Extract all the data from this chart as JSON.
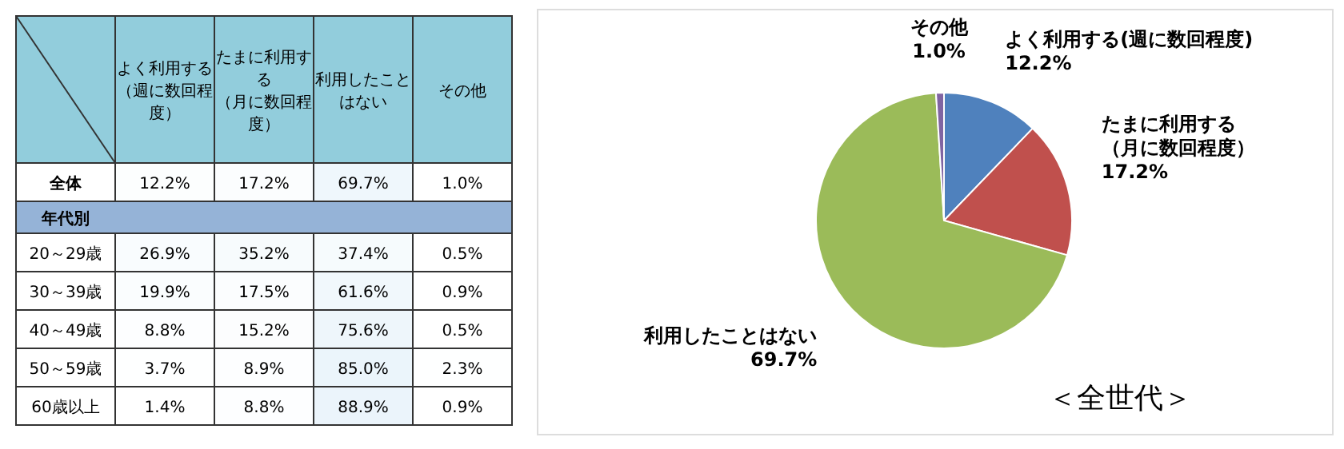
{
  "chart_data": [
    {
      "type": "heatmap",
      "categories": [
        "よく利用する（週に数回程度）",
        "たまに利用する（月に数回程度）",
        "利用したことはない",
        "その他"
      ],
      "y_categories": [
        "全体",
        "年代別",
        "20～29歳",
        "30～39歳",
        "40～49歳",
        "50～59歳",
        "60歳以上"
      ],
      "cells": [
        [
          12.2,
          17.2,
          69.7,
          1.0
        ],
        [
          null,
          null,
          null,
          null
        ],
        [
          26.9,
          35.2,
          37.4,
          0.5
        ],
        [
          19.9,
          17.5,
          61.6,
          0.9
        ],
        [
          8.8,
          15.2,
          75.6,
          0.5
        ],
        [
          3.7,
          8.9,
          85.0,
          2.3
        ],
        [
          1.4,
          8.8,
          88.9,
          0.9
        ]
      ],
      "cell_labels": [
        [
          "12.2%",
          "17.2%",
          "69.7%",
          "1.0%"
        ],
        [
          null,
          null,
          null,
          null
        ],
        [
          "26.9%",
          "35.2%",
          "37.4%",
          "0.5%"
        ],
        [
          "19.9%",
          "17.5%",
          "61.6%",
          "0.9%"
        ],
        [
          "8.8%",
          "15.2%",
          "75.6%",
          "0.5%"
        ],
        [
          "3.7%",
          "8.9%",
          "85.0%",
          "2.3%"
        ],
        [
          "1.4%",
          "8.8%",
          "88.9%",
          "0.9%"
        ]
      ]
    },
    {
      "type": "pie",
      "title": "＜全世代＞",
      "categories": [
        "よく利用する(週に数回程度)",
        "たまに利用する（月に数回程度）",
        "利用したことはない",
        "その他"
      ],
      "values": [
        12.2,
        17.2,
        69.7,
        1.0
      ],
      "colors": [
        "#4f81bd",
        "#c0504d",
        "#9bbb59",
        "#8064a2"
      ],
      "value_labels": [
        "12.2%",
        "17.2%",
        "69.7%",
        "1.0%"
      ]
    }
  ]
}
